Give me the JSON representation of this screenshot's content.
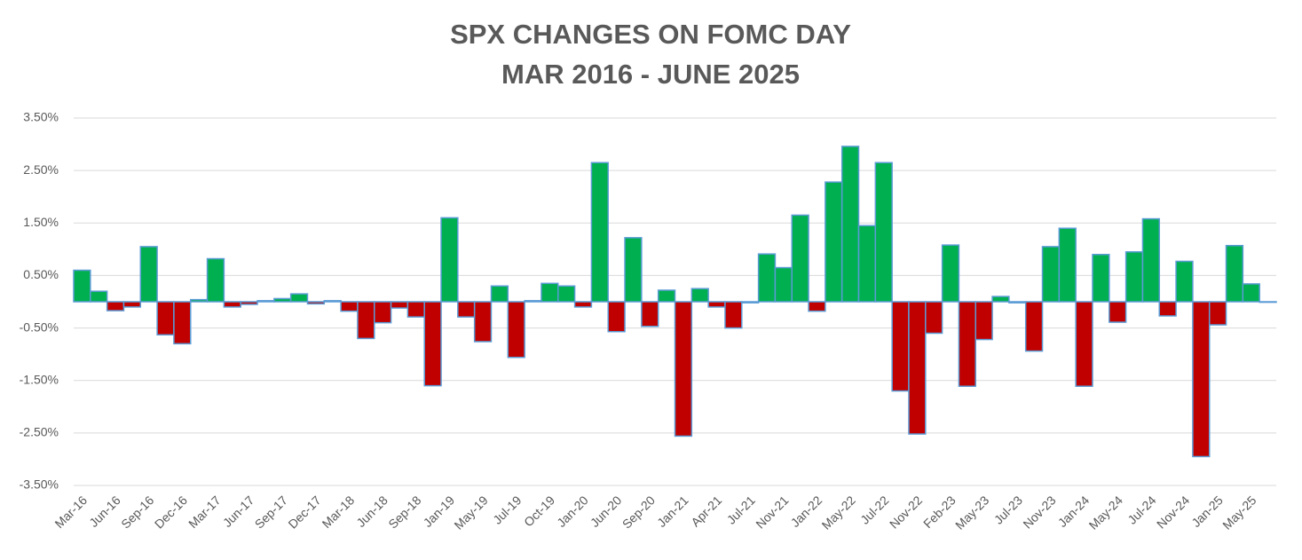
{
  "chart_data": {
    "type": "bar",
    "title": "SPX CHANGES ON FOMC DAY",
    "subtitle": "MAR 2016 - JUNE 2025",
    "categories": [
      "Mar-16",
      null,
      "Jun-16",
      null,
      "Sep-16",
      null,
      "Dec-16",
      null,
      "Mar-17",
      null,
      "Jun-17",
      null,
      "Sep-17",
      null,
      "Dec-17",
      null,
      "Mar-18",
      null,
      "Jun-18",
      null,
      "Sep-18",
      null,
      "Jan-19",
      null,
      "May-19",
      null,
      "Jul-19",
      null,
      "Oct-19",
      null,
      "Jan-20",
      null,
      "Jun-20",
      null,
      "Sep-20",
      null,
      "Jan-21",
      null,
      "Apr-21",
      null,
      "Jul-21",
      null,
      "Nov-21",
      null,
      "Jan-22",
      null,
      "May-22",
      null,
      "Jul-22",
      null,
      "Nov-22",
      null,
      "Feb-23",
      null,
      "May-23",
      null,
      "Jul-23",
      null,
      "Nov-23",
      null,
      "Jan-24",
      null,
      "May-24",
      null,
      "Jul-24",
      null,
      "Nov-24",
      null,
      "Jan-25",
      null,
      "May-25",
      null
    ],
    "values": [
      0.6,
      0.2,
      -0.17,
      -0.1,
      1.05,
      -0.63,
      -0.8,
      0.04,
      0.82,
      -0.1,
      -0.05,
      0.02,
      0.06,
      0.15,
      -0.04,
      0.02,
      -0.18,
      -0.7,
      -0.4,
      -0.12,
      -0.29,
      -1.6,
      1.6,
      -0.29,
      -0.76,
      0.3,
      -1.06,
      0.02,
      0.35,
      0.3,
      -0.1,
      2.65,
      -0.57,
      1.22,
      -0.47,
      0.22,
      -2.56,
      0.25,
      -0.1,
      -0.5,
      -0.02,
      0.91,
      0.65,
      1.65,
      -0.18,
      2.28,
      2.96,
      1.45,
      2.65,
      -1.7,
      -2.52,
      -0.6,
      1.08,
      -1.61,
      -0.72,
      0.1,
      -0.02,
      -0.94,
      1.05,
      1.4,
      -1.61,
      0.9,
      -0.39,
      0.95,
      1.58,
      -0.27,
      0.77,
      -2.95,
      -0.44,
      1.07,
      0.34,
      -0.01
    ],
    "positive_color": "#00b050",
    "negative_color": "#c00000",
    "edge_color": "#5b9bd5",
    "ylim": [
      -3.5,
      3.5
    ],
    "yticks": [
      {
        "value": -3.5,
        "label": "-3.50%"
      },
      {
        "value": -2.5,
        "label": "-2.50%"
      },
      {
        "value": -1.5,
        "label": "-1.50%"
      },
      {
        "value": -0.5,
        "label": "-0.50%"
      },
      {
        "value": 0.5,
        "label": "0.50%"
      },
      {
        "value": 1.5,
        "label": "1.50%"
      },
      {
        "value": 2.5,
        "label": "2.50%"
      },
      {
        "value": 3.5,
        "label": "3.50%"
      }
    ],
    "grid": true
  }
}
